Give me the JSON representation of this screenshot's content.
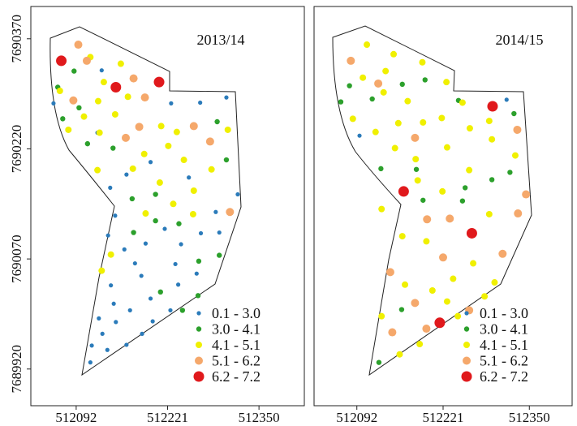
{
  "chart_data": [
    {
      "type": "scatter",
      "title": "2013/14",
      "legend": "lower right",
      "xlim": [
        512028,
        512414
      ],
      "ylim": [
        7689870,
        7690414
      ],
      "xticks": [
        512092,
        512221,
        512350
      ],
      "yticks": [
        7690370,
        7690220,
        7690070,
        7689920
      ],
      "series": [
        {
          "name": "0.1 - 3.0",
          "color": "#2b7bba",
          "x": [
            512060,
            512128,
            512122,
            512226,
            512267,
            512304,
            512163,
            512140,
            512197,
            512251,
            512320,
            512289,
            512147,
            512217,
            512137,
            512268,
            512190,
            512240,
            512294,
            512160,
            512175,
            512232,
            512262,
            512184,
            512141,
            512236,
            512197,
            512145,
            512225,
            512168,
            512124,
            512148,
            512200,
            512185,
            512129,
            512163,
            512114,
            512136,
            512112
          ],
          "y": [
            7690282,
            7690327,
            7690242,
            7690282,
            7690283,
            7690290,
            7690185,
            7690167,
            7690202,
            7690181,
            7690158,
            7690134,
            7690129,
            7690111,
            7690102,
            7690105,
            7690091,
            7690090,
            7690106,
            7690083,
            7690064,
            7690063,
            7690050,
            7690047,
            7690034,
            7690035,
            7690016,
            7690009,
            7690000,
            7690000,
            7689989,
            7689984,
            7689985,
            7689968,
            7689968,
            7689953,
            7689952,
            7689946,
            7689929
          ]
        },
        {
          "name": "3.0 - 4.1",
          "color": "#2ca02c",
          "x": [
            512089,
            512066,
            512073,
            512096,
            512108,
            512144,
            512291,
            512304,
            512204,
            512171,
            512237,
            512204,
            512173,
            512294,
            512265,
            512211,
            512264,
            512242
          ],
          "y": [
            7690326,
            7690304,
            7690261,
            7690276,
            7690227,
            7690221,
            7690257,
            7690205,
            7690158,
            7690152,
            7690118,
            7690122,
            7690106,
            7690075,
            7690067,
            7690025,
            7690020,
            7690000
          ]
        },
        {
          "name": "4.1 - 5.1",
          "color": "#f0f000",
          "x": [
            512112,
            512155,
            512131,
            512069,
            512123,
            512165,
            512103,
            512147,
            512081,
            512125,
            512212,
            512234,
            512306,
            512222,
            512188,
            512244,
            512122,
            512172,
            512283,
            512210,
            512258,
            512229,
            512190,
            512257,
            512141,
            512128
          ],
          "y": [
            7690345,
            7690336,
            7690311,
            7690299,
            7690285,
            7690291,
            7690264,
            7690267,
            7690246,
            7690242,
            7690251,
            7690243,
            7690246,
            7690224,
            7690213,
            7690205,
            7690191,
            7690193,
            7690192,
            7690174,
            7690163,
            7690145,
            7690132,
            7690131,
            7690076,
            7690054
          ]
        },
        {
          "name": "5.1 - 6.2",
          "color": "#f5a86b",
          "x": [
            512095,
            512107,
            512173,
            512088,
            512189,
            512181,
            512162,
            512258,
            512281,
            512309
          ],
          "y": [
            7690362,
            7690340,
            7690316,
            7690286,
            7690290,
            7690250,
            7690235,
            7690251,
            7690230,
            7690134
          ]
        },
        {
          "name": "6.2 - 7.2",
          "color": "#e0191c",
          "x": [
            512071,
            512148,
            512209
          ],
          "y": [
            7690340,
            7690304,
            7690311
          ]
        }
      ]
    },
    {
      "type": "scatter",
      "title": "2014/15",
      "legend": "lower right",
      "xlim": [
        512028,
        512414
      ],
      "ylim": [
        7689870,
        7690414
      ],
      "xticks": [
        512092,
        512221,
        512350
      ],
      "series": [
        {
          "name": "0.1 - 3.0",
          "color": "#2b7bba",
          "x": [
            512096,
            512316
          ],
          "y": [
            7690238,
            7690287
          ]
        },
        {
          "name": "3.0 - 4.1",
          "color": "#2ca02c",
          "x": [
            512081,
            512068,
            512115,
            512194,
            512160,
            512244,
            512327,
            512181,
            512321,
            512294,
            512254,
            512128,
            512250,
            512191,
            512159,
            512125
          ],
          "y": [
            7690306,
            7690284,
            7690288,
            7690314,
            7690308,
            7690286,
            7690268,
            7690192,
            7690188,
            7690178,
            7690167,
            7690193,
            7690149,
            7690150,
            7690001,
            7689929
          ]
        },
        {
          "name": "4.1 - 5.1",
          "color": "#f0f000",
          "x": [
            512107,
            512147,
            512101,
            512135,
            512190,
            512226,
            512168,
            512132,
            512086,
            512120,
            512219,
            512250,
            512154,
            512191,
            512261,
            512290,
            512294,
            512329,
            512149,
            512227,
            512180,
            512260,
            512129,
            512183,
            512220,
            512290,
            512196,
            512160,
            512266,
            512236,
            512298,
            512164,
            512205,
            512283,
            512227,
            512129,
            512243,
            512186,
            512156
          ],
          "y": [
            7690362,
            7690349,
            7690317,
            7690326,
            7690338,
            7690311,
            7690285,
            7690297,
            7690261,
            7690243,
            7690262,
            7690283,
            7690255,
            7690256,
            7690248,
            7690258,
            7690233,
            7690211,
            7690221,
            7690222,
            7690206,
            7690191,
            7690138,
            7690177,
            7690162,
            7690131,
            7690094,
            7690101,
            7690064,
            7690043,
            7690038,
            7690035,
            7690027,
            7690019,
            7690012,
            7689992,
            7689992,
            7689954,
            7689940
          ]
        },
        {
          "name": "5.1 - 6.2",
          "color": "#f5a86b",
          "x": [
            512083,
            512124,
            512179,
            512332,
            512345,
            512333,
            512197,
            512231,
            512142,
            512221,
            512310,
            512179,
            512260,
            512145,
            512196
          ],
          "y": [
            7690340,
            7690309,
            7690235,
            7690246,
            7690158,
            7690132,
            7690124,
            7690125,
            7690052,
            7690072,
            7690077,
            7690010,
            7690000,
            7689970,
            7689975
          ]
        },
        {
          "name": "6.2 - 7.2",
          "color": "#e0191c",
          "x": [
            512295,
            512162,
            512264,
            512216
          ],
          "y": [
            7690278,
            7690162,
            7690105,
            7689983
          ]
        }
      ]
    }
  ]
}
